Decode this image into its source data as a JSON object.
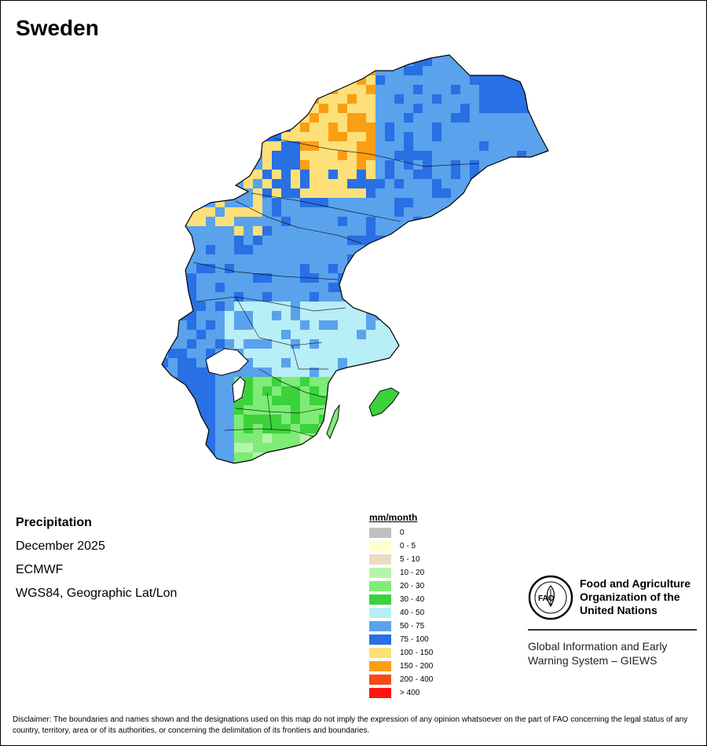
{
  "map": {
    "country": "Sweden",
    "variable": "Precipitation",
    "period": "December 2025",
    "source": "ECMWF",
    "projection": "WGS84, Geographic Lat/Lon"
  },
  "legend": {
    "title": "mm/month",
    "classes": [
      {
        "label": "0",
        "color": "#c0c0c0"
      },
      {
        "label": "0 - 5",
        "color": "#ffffcc"
      },
      {
        "label": "5 - 10",
        "color": "#ecdcbc"
      },
      {
        "label": "10 - 20",
        "color": "#b4f5ac"
      },
      {
        "label": "20 - 30",
        "color": "#7eec76"
      },
      {
        "label": "30 - 40",
        "color": "#3cd23c"
      },
      {
        "label": "40 - 50",
        "color": "#b8eef6"
      },
      {
        "label": "50 - 75",
        "color": "#5aa2ec"
      },
      {
        "label": "75 - 100",
        "color": "#2870e4"
      },
      {
        "label": "100 - 150",
        "color": "#fde07a"
      },
      {
        "label": "150 - 200",
        "color": "#fa9e14"
      },
      {
        "label": "200 - 400",
        "color": "#f84a14"
      },
      {
        "label": "> 400",
        "color": "#ff1414"
      }
    ]
  },
  "organization": {
    "logo_text": "FAO",
    "name": "Food and Agriculture Organization of the United Nations",
    "name_lines": [
      "Food and Agriculture",
      "Organization of the",
      "United Nations"
    ],
    "system_lines": [
      "Global Information and Early",
      "Warning System – GIEWS"
    ]
  },
  "disclaimer": "Disclaimer: The boundaries and names shown and the designations used on this map do not imply the expression of any opinion whatsoever on the part of FAO concerning the legal status of any country, territory, area or of its authorities, or concerning the delimitation of its frontiers and boundaries."
}
